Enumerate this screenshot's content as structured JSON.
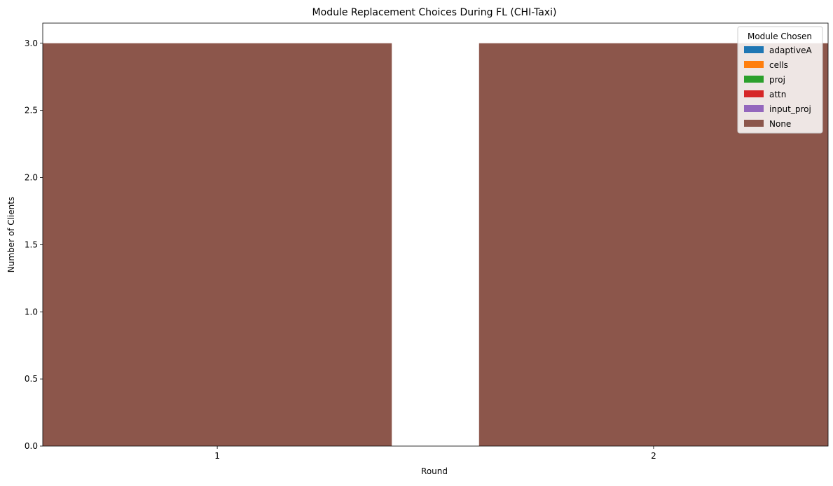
{
  "chart_data": {
    "type": "bar",
    "stacked": true,
    "title": "Module Replacement Choices During FL (CHI-Taxi)",
    "xlabel": "Round",
    "ylabel": "Number of Clients",
    "categories": [
      "1",
      "2"
    ],
    "ylim": [
      0,
      3.15
    ],
    "yticks": [
      "0.0",
      "0.5",
      "1.0",
      "1.5",
      "2.0",
      "2.5",
      "3.0"
    ],
    "grid": false,
    "legend": {
      "title": "Module Chosen",
      "placement": "top-right"
    },
    "series": [
      {
        "name": "adaptiveA",
        "color": "#1f77b4",
        "values": [
          0,
          0
        ]
      },
      {
        "name": "cells",
        "color": "#ff7f0e",
        "values": [
          0,
          0
        ]
      },
      {
        "name": "proj",
        "color": "#2ca02c",
        "values": [
          0,
          0
        ]
      },
      {
        "name": "attn",
        "color": "#d62728",
        "values": [
          0,
          0
        ]
      },
      {
        "name": "input_proj",
        "color": "#9467bd",
        "values": [
          0,
          0
        ]
      },
      {
        "name": "None",
        "color": "#8c564b",
        "values": [
          3,
          3
        ]
      }
    ]
  }
}
